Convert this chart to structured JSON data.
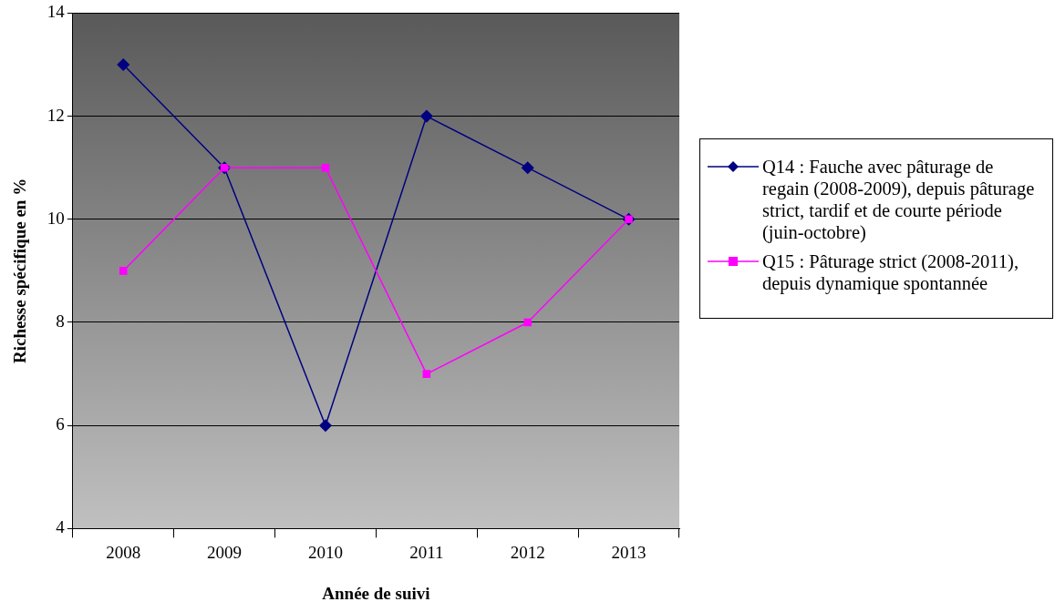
{
  "chart_data": {
    "type": "line",
    "xlabel": "Année de suivi",
    "ylabel": "Richesse spécifique en %",
    "categories": [
      "2008",
      "2009",
      "2010",
      "2011",
      "2012",
      "2013"
    ],
    "series": [
      {
        "name": "Q14 : Fauche avec pâturage de regain (2008-2009), depuis pâturage strict, tardif et de courte période (juin-octobre)",
        "color": "#000080",
        "marker": "diamond",
        "values": [
          13,
          11,
          6,
          12,
          11,
          10
        ]
      },
      {
        "name": "Q15 : Pâturage strict (2008-2011), depuis dynamique spontannée",
        "color": "#ff00ff",
        "marker": "square",
        "values": [
          9,
          11,
          11,
          7,
          8,
          10
        ]
      }
    ],
    "ylim": [
      4,
      14
    ],
    "yticks": [
      4,
      6,
      8,
      10,
      12,
      14
    ],
    "grid": "y",
    "legend": "right",
    "line_style": "solid"
  }
}
